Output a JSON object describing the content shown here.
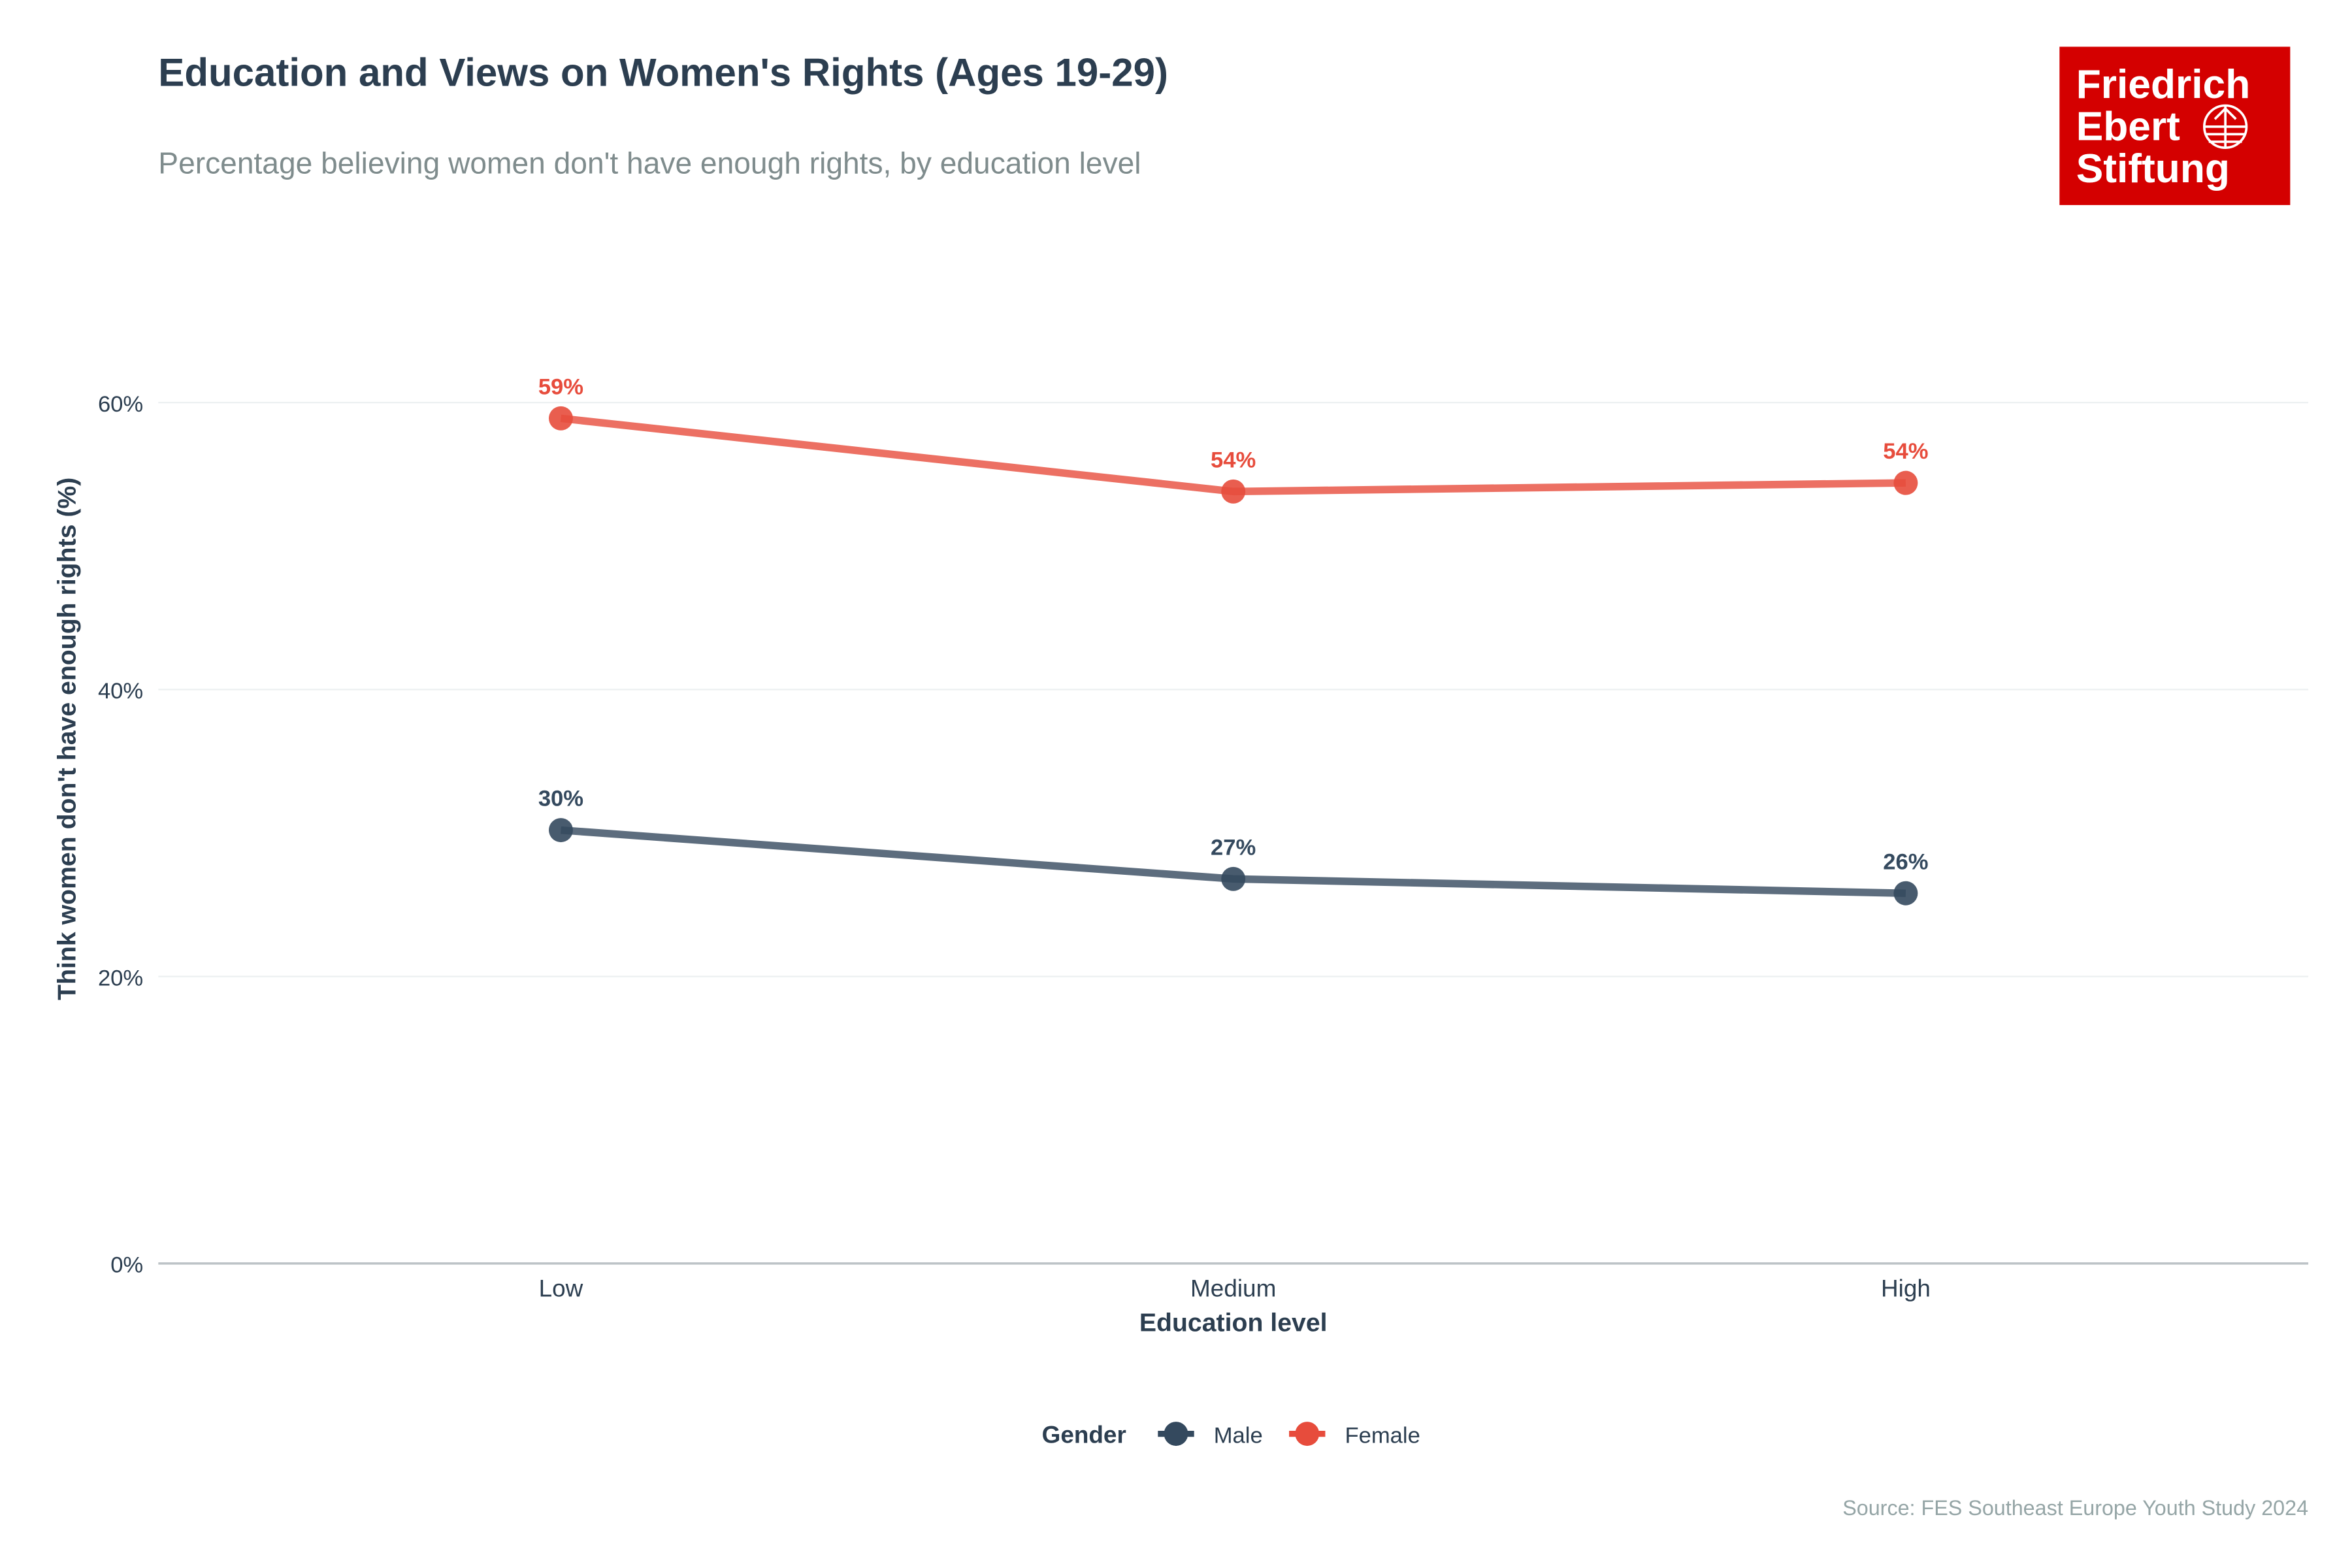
{
  "logo": {
    "lines": [
      "Friedrich",
      "Ebert",
      "Stiftung"
    ],
    "color": "#d40000"
  },
  "chart_data": {
    "type": "line",
    "title": "Education and Views on Women's Rights (Ages 19-29)",
    "subtitle": "Percentage believing women don't have enough rights, by education level",
    "xlabel": "Education level",
    "ylabel": "Think women don't have enough rights (%)",
    "categories": [
      "Low",
      "Medium",
      "High"
    ],
    "ylim": [
      0,
      60
    ],
    "yticks": [
      0,
      20,
      40,
      60
    ],
    "ytick_labels": [
      "0%",
      "20%",
      "40%",
      "60%"
    ],
    "grid": true,
    "legend": {
      "title": "Gender",
      "placement": "bottom"
    },
    "series": [
      {
        "name": "Male",
        "color": "#34495e",
        "values": [
          30.2,
          26.8,
          25.8
        ],
        "labels": [
          "30%",
          "27%",
          "26%"
        ]
      },
      {
        "name": "Female",
        "color": "#e74c3c",
        "values": [
          58.9,
          53.8,
          54.4
        ],
        "labels": [
          "59%",
          "54%",
          "54%"
        ]
      }
    ],
    "source": "Source: FES Southeast Europe Youth Study 2024"
  }
}
